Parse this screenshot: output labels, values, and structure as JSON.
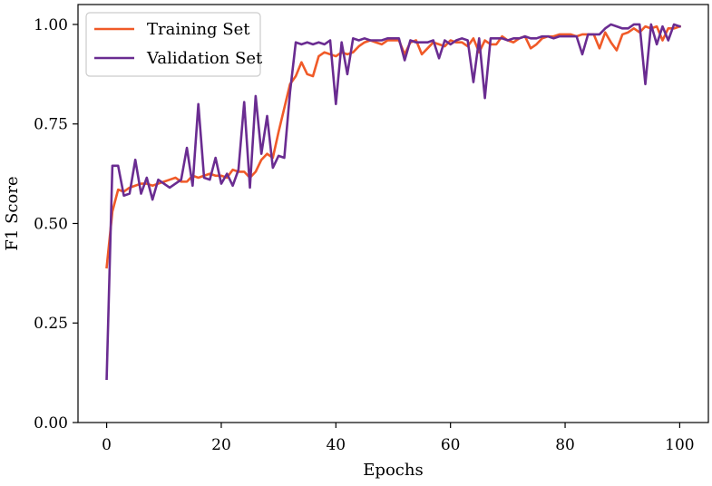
{
  "chart_data": {
    "type": "line",
    "title": "",
    "xlabel": "Epochs",
    "ylabel": "F1 Score",
    "xlim": [
      -5,
      105
    ],
    "ylim": [
      0.0,
      1.05
    ],
    "xticks": [
      0,
      20,
      40,
      60,
      80,
      100
    ],
    "xtick_labels": [
      "0",
      "20",
      "40",
      "60",
      "80",
      "100"
    ],
    "yticks": [
      0.0,
      0.25,
      0.5,
      0.75,
      1.0
    ],
    "ytick_labels": [
      "0.00",
      "0.25",
      "0.50",
      "0.75",
      "1.00"
    ],
    "grid": false,
    "legend_position": "top-left",
    "x": [
      0,
      1,
      2,
      3,
      4,
      5,
      6,
      7,
      8,
      9,
      10,
      11,
      12,
      13,
      14,
      15,
      16,
      17,
      18,
      19,
      20,
      21,
      22,
      23,
      24,
      25,
      26,
      27,
      28,
      29,
      30,
      31,
      32,
      33,
      34,
      35,
      36,
      37,
      38,
      39,
      40,
      41,
      42,
      43,
      44,
      45,
      46,
      47,
      48,
      49,
      50,
      51,
      52,
      53,
      54,
      55,
      56,
      57,
      58,
      59,
      60,
      61,
      62,
      63,
      64,
      65,
      66,
      67,
      68,
      69,
      70,
      71,
      72,
      73,
      74,
      75,
      76,
      77,
      78,
      79,
      80,
      81,
      82,
      83,
      84,
      85,
      86,
      87,
      88,
      89,
      90,
      91,
      92,
      93,
      94,
      95,
      96,
      97,
      98,
      99,
      100
    ],
    "series": [
      {
        "name": "Training Set",
        "color": "#f05a28",
        "values": [
          0.39,
          0.53,
          0.585,
          0.58,
          0.59,
          0.595,
          0.6,
          0.6,
          0.595,
          0.6,
          0.605,
          0.61,
          0.615,
          0.605,
          0.605,
          0.62,
          0.615,
          0.62,
          0.625,
          0.62,
          0.62,
          0.615,
          0.635,
          0.63,
          0.63,
          0.615,
          0.63,
          0.66,
          0.675,
          0.665,
          0.73,
          0.79,
          0.85,
          0.87,
          0.905,
          0.875,
          0.87,
          0.92,
          0.93,
          0.925,
          0.92,
          0.93,
          0.925,
          0.93,
          0.945,
          0.955,
          0.96,
          0.955,
          0.95,
          0.96,
          0.96,
          0.96,
          0.925,
          0.955,
          0.96,
          0.925,
          0.94,
          0.955,
          0.95,
          0.945,
          0.96,
          0.955,
          0.955,
          0.945,
          0.965,
          0.93,
          0.96,
          0.95,
          0.95,
          0.97,
          0.96,
          0.955,
          0.965,
          0.97,
          0.94,
          0.95,
          0.965,
          0.97,
          0.97,
          0.975,
          0.975,
          0.975,
          0.97,
          0.975,
          0.975,
          0.975,
          0.94,
          0.98,
          0.955,
          0.935,
          0.975,
          0.98,
          0.99,
          0.98,
          0.995,
          0.99,
          0.995,
          0.96,
          0.99,
          0.99,
          0.995
        ]
      },
      {
        "name": "Validation Set",
        "color": "#6a2c91",
        "values": [
          0.11,
          0.645,
          0.645,
          0.57,
          0.575,
          0.66,
          0.575,
          0.615,
          0.56,
          0.61,
          0.6,
          0.59,
          0.6,
          0.61,
          0.69,
          0.595,
          0.8,
          0.615,
          0.61,
          0.665,
          0.6,
          0.625,
          0.595,
          0.635,
          0.805,
          0.59,
          0.82,
          0.675,
          0.77,
          0.64,
          0.67,
          0.665,
          0.83,
          0.955,
          0.95,
          0.955,
          0.95,
          0.955,
          0.95,
          0.96,
          0.8,
          0.955,
          0.875,
          0.965,
          0.96,
          0.965,
          0.96,
          0.96,
          0.96,
          0.965,
          0.965,
          0.965,
          0.91,
          0.96,
          0.955,
          0.955,
          0.955,
          0.96,
          0.915,
          0.96,
          0.95,
          0.96,
          0.965,
          0.96,
          0.855,
          0.965,
          0.815,
          0.965,
          0.965,
          0.965,
          0.96,
          0.965,
          0.965,
          0.97,
          0.965,
          0.965,
          0.97,
          0.97,
          0.965,
          0.97,
          0.97,
          0.97,
          0.97,
          0.925,
          0.975,
          0.975,
          0.975,
          0.99,
          1.0,
          0.995,
          0.99,
          0.99,
          1.0,
          1.0,
          0.85,
          1.0,
          0.95,
          0.995,
          0.96,
          1.0,
          0.995
        ]
      }
    ]
  }
}
